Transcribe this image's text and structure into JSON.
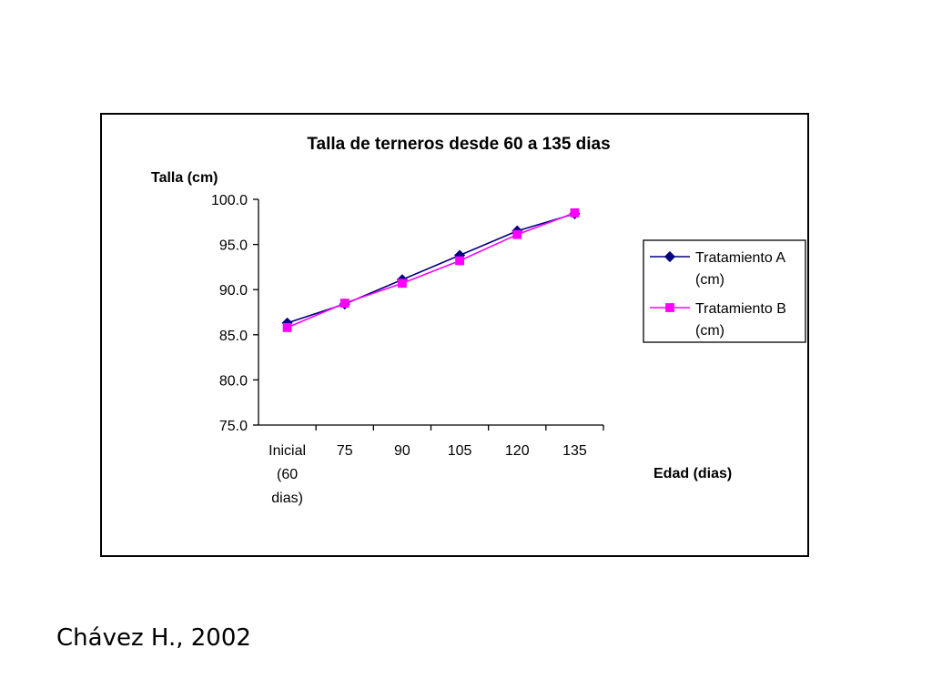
{
  "chart_data": {
    "type": "line",
    "title": "Talla de terneros desde 60 a 135 dias",
    "ylabel": "Talla (cm)",
    "xlabel": "Edad (dias)",
    "categories": [
      [
        "Inicial",
        "(60",
        "dias)"
      ],
      [
        "75"
      ],
      [
        "90"
      ],
      [
        "105"
      ],
      [
        "120"
      ],
      [
        "135"
      ]
    ],
    "ylim": [
      75.0,
      100.0
    ],
    "yticks": [
      "100.0",
      "95.0",
      "90.0",
      "85.0",
      "80.0",
      "75.0"
    ],
    "ytick_values": [
      100,
      95,
      90,
      85,
      80,
      75
    ],
    "grid": false,
    "legend_position": "right",
    "series": [
      {
        "name": [
          "Tratamiento A",
          "(cm)"
        ],
        "marker": "diamond",
        "color": "#000080",
        "values": [
          86.3,
          88.4,
          91.1,
          93.8,
          96.5,
          98.4
        ]
      },
      {
        "name": [
          "Tratamiento B",
          "(cm)"
        ],
        "marker": "square",
        "color": "#ff00ff",
        "values": [
          85.8,
          88.5,
          90.7,
          93.2,
          96.1,
          98.5
        ]
      }
    ]
  },
  "footer": {
    "credit": "Chávez H., 2002"
  }
}
